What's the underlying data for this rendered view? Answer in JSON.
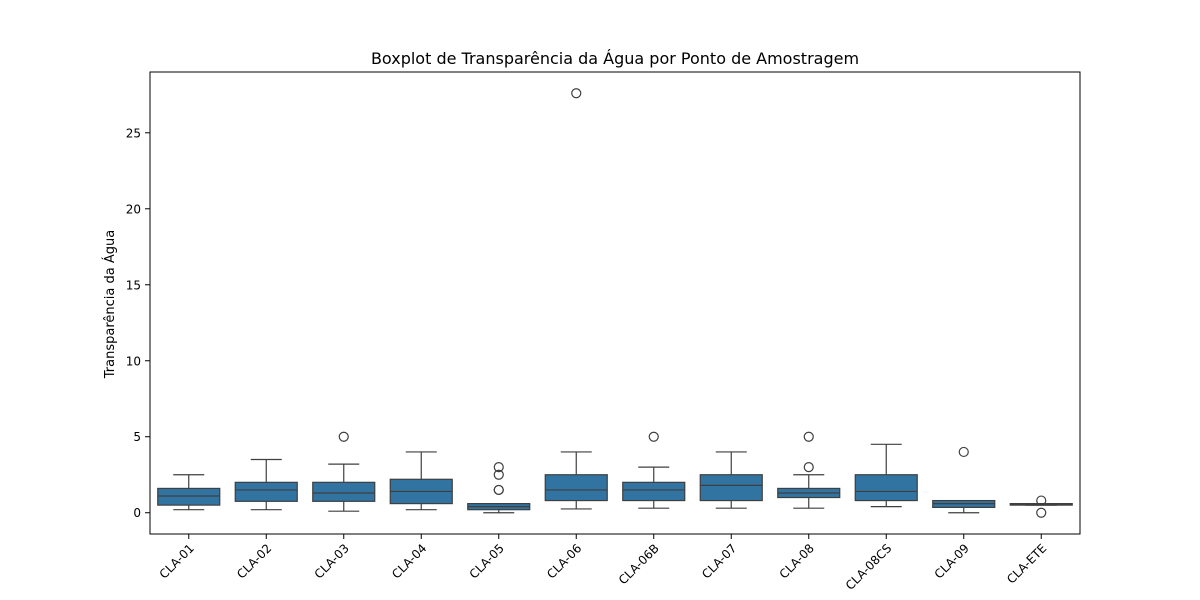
{
  "chart_data": {
    "type": "boxplot",
    "title": "Boxplot de Transparência da Água por Ponto de Amostragem",
    "xlabel": "",
    "ylabel": "Transparência da Água",
    "ylim": [
      -1.4,
      29.0
    ],
    "yticks": [
      0,
      5,
      10,
      15,
      20,
      25
    ],
    "grid": false,
    "box_color": "#3274a1",
    "line_color": "#3f3f3f",
    "categories": [
      "CLA-01",
      "CLA-02",
      "CLA-03",
      "CLA-04",
      "CLA-05",
      "CLA-06",
      "CLA-06B",
      "CLA-07",
      "CLA-08",
      "CLA-08CS",
      "CLA-09",
      "CLA-ETE"
    ],
    "boxes": [
      {
        "whislo": 0.2,
        "q1": 0.5,
        "med": 1.1,
        "q3": 1.6,
        "whishi": 2.5,
        "fliers": []
      },
      {
        "whislo": 0.2,
        "q1": 0.75,
        "med": 1.5,
        "q3": 2.0,
        "whishi": 3.5,
        "fliers": []
      },
      {
        "whislo": 0.1,
        "q1": 0.75,
        "med": 1.3,
        "q3": 2.0,
        "whishi": 3.2,
        "fliers": [
          5.0
        ]
      },
      {
        "whislo": 0.2,
        "q1": 0.6,
        "med": 1.4,
        "q3": 2.2,
        "whishi": 4.0,
        "fliers": []
      },
      {
        "whislo": 0.0,
        "q1": 0.2,
        "med": 0.4,
        "q3": 0.6,
        "whishi": 0.6,
        "fliers": [
          1.5,
          1.5,
          2.5,
          3.0
        ]
      },
      {
        "whislo": 0.25,
        "q1": 0.8,
        "med": 1.5,
        "q3": 2.5,
        "whishi": 4.0,
        "fliers": [
          27.6
        ]
      },
      {
        "whislo": 0.3,
        "q1": 0.8,
        "med": 1.5,
        "q3": 2.0,
        "whishi": 3.0,
        "fliers": [
          5.0
        ]
      },
      {
        "whislo": 0.3,
        "q1": 0.8,
        "med": 1.8,
        "q3": 2.5,
        "whishi": 4.0,
        "fliers": []
      },
      {
        "whislo": 0.3,
        "q1": 1.0,
        "med": 1.3,
        "q3": 1.6,
        "whishi": 2.5,
        "fliers": [
          3.0,
          5.0
        ]
      },
      {
        "whislo": 0.4,
        "q1": 0.8,
        "med": 1.4,
        "q3": 2.5,
        "whishi": 4.5,
        "fliers": []
      },
      {
        "whislo": 0.0,
        "q1": 0.35,
        "med": 0.6,
        "q3": 0.8,
        "whishi": 0.8,
        "fliers": [
          4.0
        ]
      },
      {
        "whislo": 0.5,
        "q1": 0.5,
        "med": 0.55,
        "q3": 0.6,
        "whishi": 0.6,
        "fliers": [
          0.0,
          0.8
        ]
      }
    ]
  }
}
